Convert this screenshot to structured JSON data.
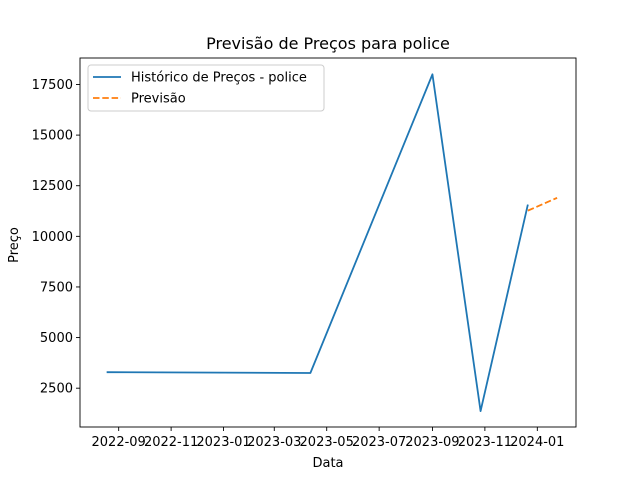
{
  "chart_data": {
    "type": "line",
    "title": "Previsão de Preços para police",
    "xlabel": "Data",
    "ylabel": "Preço",
    "x_axis_type": "date",
    "xlim": [
      "2022-07-18",
      "2024-02-15"
    ],
    "ylim": [
      583,
      18808
    ],
    "x_ticks": [
      "2022-09",
      "2022-11",
      "2023-01",
      "2023-03",
      "2023-05",
      "2023-07",
      "2023-09",
      "2023-11",
      "2024-01"
    ],
    "y_ticks": [
      2500,
      5000,
      7500,
      10000,
      12500,
      15000,
      17500
    ],
    "grid": false,
    "legend_position": "top-left",
    "series": [
      {
        "name": "Histórico de Preços - police",
        "color": "#1f77b4",
        "style": "solid",
        "points": [
          {
            "x": "2022-08-18",
            "y": 3290
          },
          {
            "x": "2023-04-12",
            "y": 3250
          },
          {
            "x": "2023-09-01",
            "y": 18000
          },
          {
            "x": "2023-10-27",
            "y": 1370
          },
          {
            "x": "2023-12-21",
            "y": 11570
          }
        ]
      },
      {
        "name": "Previsão",
        "color": "#ff7f0e",
        "style": "dashed",
        "points": [
          {
            "x": "2023-12-21",
            "y": 11270
          },
          {
            "x": "2024-01-24",
            "y": 11900
          }
        ]
      }
    ]
  }
}
